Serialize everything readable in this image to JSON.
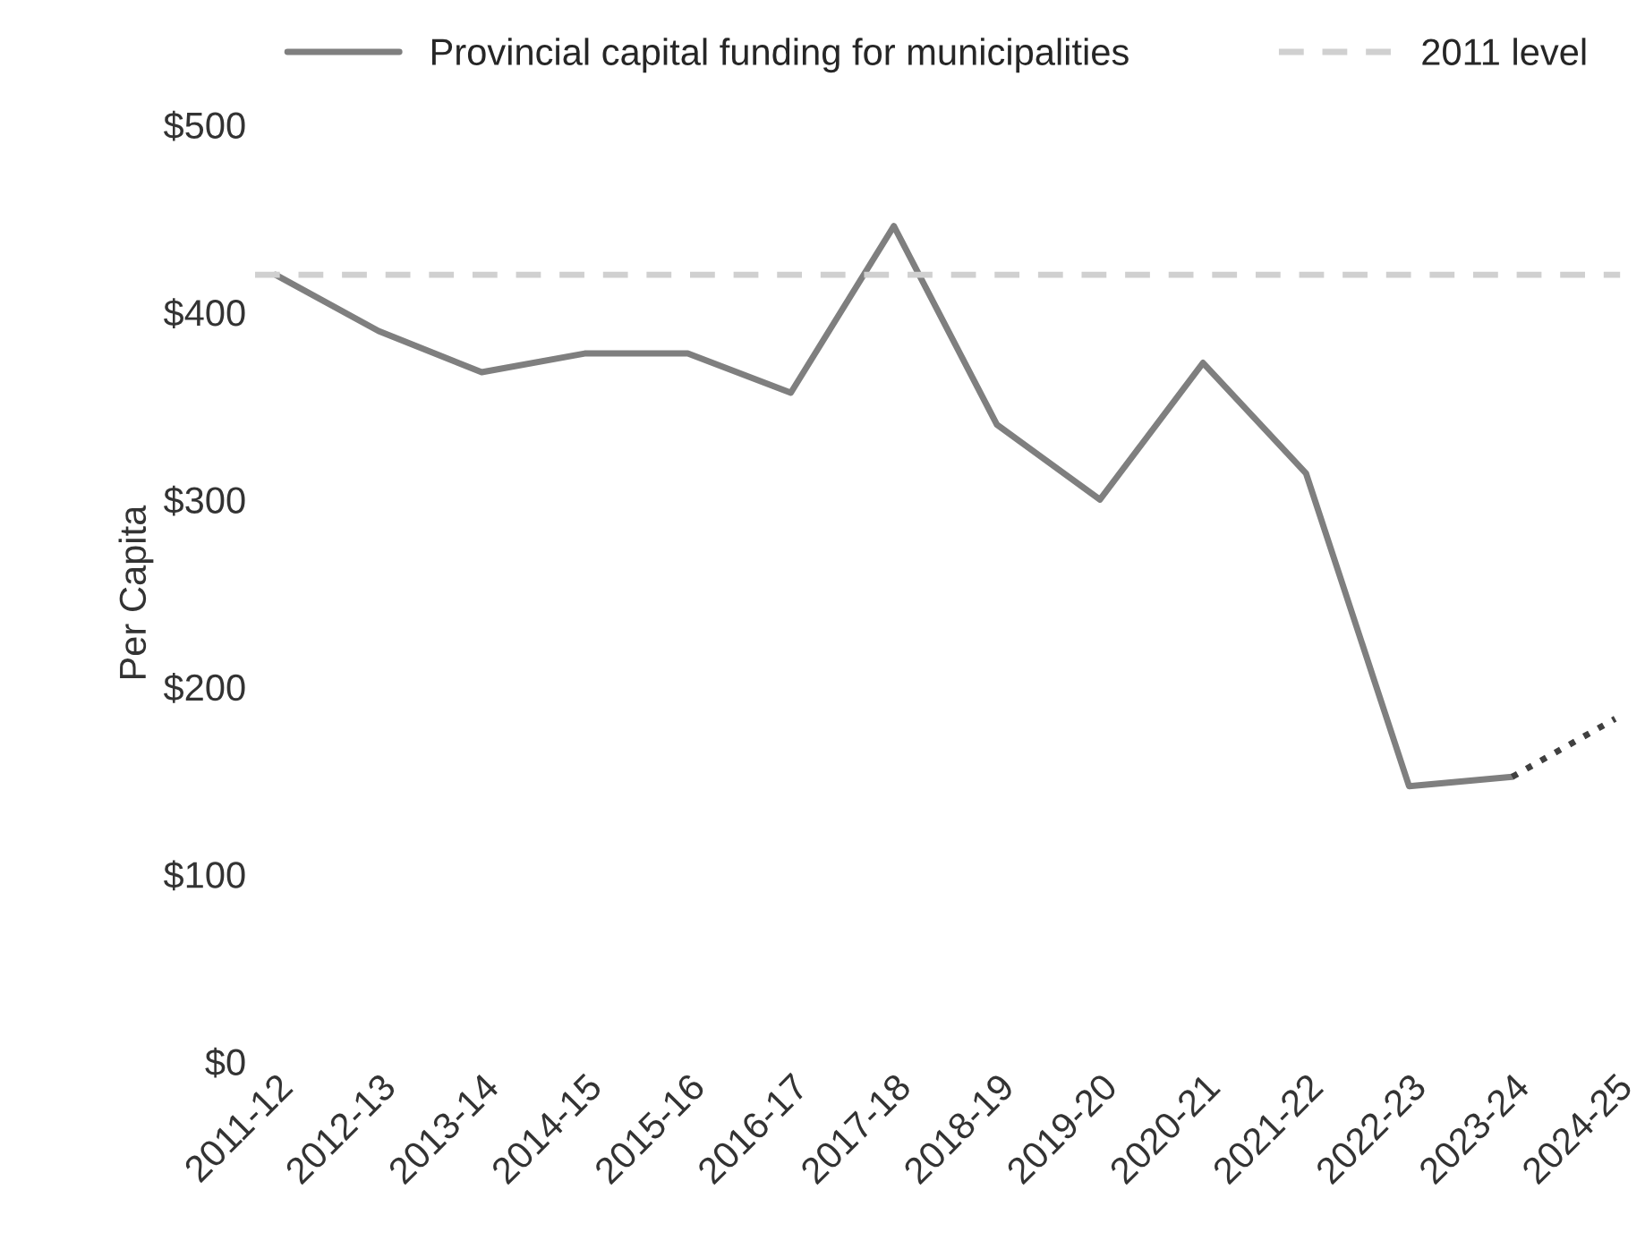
{
  "chart_data": {
    "type": "line",
    "ylabel": "Per Capita",
    "categories": [
      "2011-12",
      "2012-13",
      "2013-14",
      "2014-15",
      "2015-16",
      "2016-17",
      "2017-18",
      "2018-19",
      "2019-20",
      "2020-21",
      "2021-22",
      "2022-23",
      "2023-24",
      "2024-25"
    ],
    "series": [
      {
        "name": "Provincial capital funding for municipalities",
        "color": "#7f7f7f",
        "line_style": "solid",
        "values": [
          420,
          390,
          368,
          378,
          378,
          357,
          446,
          340,
          300,
          373,
          314,
          147,
          152,
          null
        ]
      },
      {
        "color": "#404040",
        "line_style": "dotted",
        "values": [
          null,
          null,
          null,
          null,
          null,
          null,
          null,
          null,
          null,
          null,
          null,
          null,
          152,
          183
        ]
      }
    ],
    "ref_lines": [
      {
        "axis": "y",
        "value": 420,
        "label": "2011 level",
        "color": "#d0d0d0",
        "line_style": "dashed"
      }
    ],
    "ylim": [
      0,
      500
    ],
    "yticks": [
      {
        "value": 0,
        "label": "$0"
      },
      {
        "value": 100,
        "label": "$100"
      },
      {
        "value": 200,
        "label": "$200"
      },
      {
        "value": 300,
        "label": "$300"
      },
      {
        "value": 400,
        "label": "$400"
      },
      {
        "value": 500,
        "label": "$500"
      }
    ],
    "grid": false,
    "legend": "top",
    "marker": "none"
  }
}
